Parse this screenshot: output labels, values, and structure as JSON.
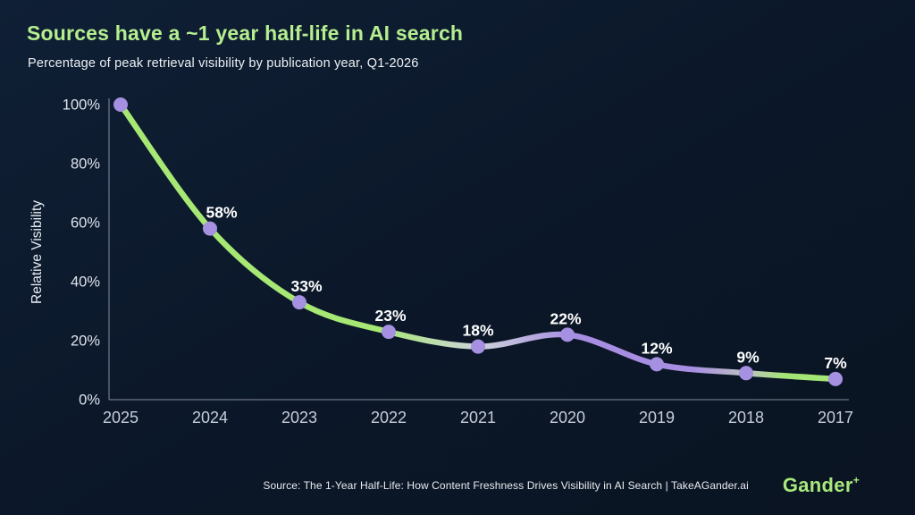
{
  "header": {
    "title": "Sources have a ~1 year half-life in AI search",
    "subtitle": "Percentage of peak retrieval visibility by publication year, Q1-2026"
  },
  "chart_data": {
    "type": "line",
    "title": "Sources have a ~1 year half-life in AI search",
    "subtitle": "Percentage of peak retrieval visibility by publication year, Q1-2026",
    "categories": [
      "2025",
      "2024",
      "2023",
      "2022",
      "2021",
      "2020",
      "2019",
      "2018",
      "2017"
    ],
    "values": [
      100,
      58,
      33,
      23,
      18,
      22,
      12,
      9,
      7
    ],
    "point_labels": [
      "",
      "58%",
      "33%",
      "23%",
      "18%",
      "22%",
      "12%",
      "9%",
      "7%"
    ],
    "xlabel": "",
    "ylabel": "Relative Visibility",
    "ylim": [
      0,
      100
    ],
    "ytick_values": [
      0,
      20,
      40,
      60,
      80,
      100
    ],
    "ytick_labels": [
      "0%",
      "20%",
      "40%",
      "60%",
      "80%",
      "100%"
    ],
    "grid": false,
    "legend": null,
    "line_gradient": [
      {
        "offset": 0.0,
        "color": "#a6e873"
      },
      {
        "offset": 0.36,
        "color": "#a6e873"
      },
      {
        "offset": 0.5,
        "color": "#ced4db"
      },
      {
        "offset": 0.63,
        "color": "#a78ee2"
      },
      {
        "offset": 0.8,
        "color": "#a78ee2"
      },
      {
        "offset": 0.875,
        "color": "#bcc2bf"
      },
      {
        "offset": 0.93,
        "color": "#a3e575"
      },
      {
        "offset": 1.0,
        "color": "#a6e873"
      }
    ],
    "dot_color": "#a590e2",
    "axis_color": "#8b92a2",
    "ytick_color": "#dfe3ec",
    "xtick_color": "#c7ccd9",
    "data_label_color": "#ffffff"
  },
  "footer": {
    "source": "Source: The 1-Year Half-Life: How Content Freshness Drives Visibility in AI Search  | TakeAGander.ai",
    "brand": "Gander",
    "brand_plus": "+"
  },
  "colors": {
    "background": "#0b1728",
    "title_green": "#b5ee8f",
    "accent_green": "#a6e873",
    "accent_purple": "#a78ee2"
  }
}
